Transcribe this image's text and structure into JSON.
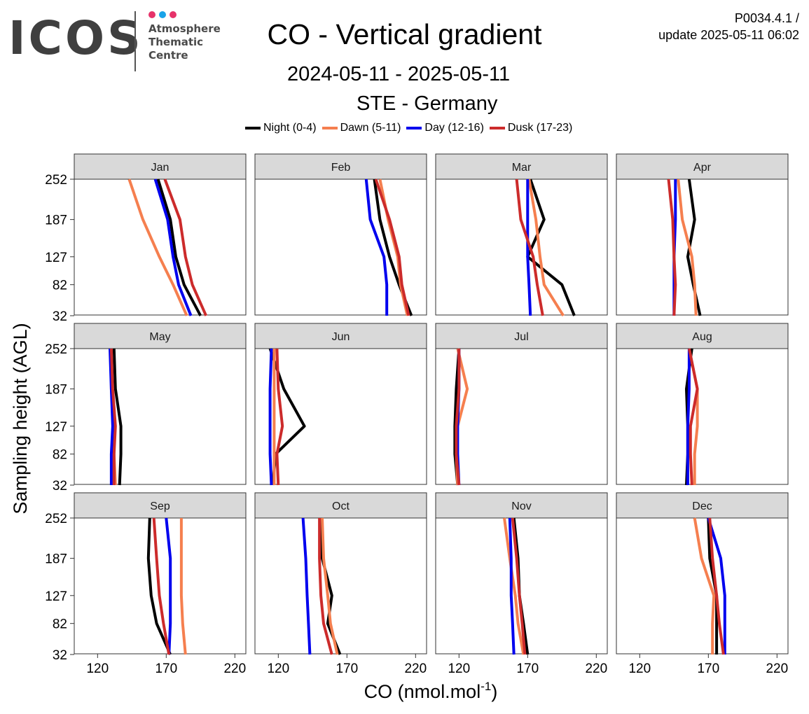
{
  "logo": {
    "wordmark": "ICOS",
    "lines": [
      "Atmosphere",
      "Thematic",
      "Centre"
    ],
    "dot_colors": [
      "#e6336a",
      "#1aa3e8",
      "#e6336a"
    ]
  },
  "header": {
    "title": "CO - Vertical gradient",
    "period": "2024-05-11 - 2025-05-11",
    "station": "STE - Germany",
    "product_id": "P0034.4.1 /",
    "update": "update  2025-05-11 06:02"
  },
  "chart_data": {
    "type": "line",
    "title": "CO - Vertical gradient",
    "xlabel": "CO (nmol.mol",
    "xlabel_superscript": "-1",
    "xlabel_suffix": ")",
    "ylabel": "Sampling height (AGL)",
    "xlim": [
      103,
      228
    ],
    "x_ticks": [
      120,
      170,
      220
    ],
    "y_ticks": [
      32,
      82,
      127,
      187,
      252
    ],
    "heights": [
      32,
      82,
      127,
      187,
      252
    ],
    "legend_position": "top",
    "grid": false,
    "series": [
      {
        "name": "Night (0-4)",
        "color": "#000000"
      },
      {
        "name": "Dawn (5-11)",
        "color": "#f57f4f"
      },
      {
        "name": "Day (12-16)",
        "color": "#0000ee"
      },
      {
        "name": "Dusk (17-23)",
        "color": "#cc2b2b"
      }
    ],
    "panels": [
      {
        "month": "Jan",
        "values": [
          [
            195,
            183,
            177,
            173,
            164
          ],
          [
            185,
            175,
            165,
            153,
            143
          ],
          [
            188,
            179,
            175,
            171,
            162
          ],
          [
            199,
            189,
            184,
            180,
            169
          ]
        ]
      },
      {
        "month": "Feb",
        "values": [
          [
            217,
            208,
            201,
            194,
            190
          ],
          [
            214,
            209,
            207,
            200,
            194
          ],
          [
            199,
            199,
            197,
            187,
            184
          ],
          [
            215,
            210,
            208,
            201,
            191
          ]
        ]
      },
      {
        "month": "Mar",
        "values": [
          [
            204,
            195,
            170,
            182,
            172
          ],
          [
            196,
            182,
            179,
            176,
            171
          ],
          [
            172,
            171,
            170,
            170,
            170
          ],
          [
            181,
            177,
            174,
            165,
            162
          ]
        ]
      },
      {
        "month": "Apr",
        "values": [
          [
            164,
            159,
            155,
            160,
            156
          ],
          [
            161,
            160,
            158,
            151,
            148
          ],
          [
            145,
            145,
            145,
            146,
            146
          ],
          [
            145,
            146,
            145,
            144,
            141
          ]
        ]
      },
      {
        "month": "May",
        "values": [
          [
            136,
            137,
            137,
            133,
            132
          ],
          [
            133,
            132,
            132,
            130,
            130
          ],
          [
            130,
            130,
            131,
            130,
            129
          ],
          [
            132,
            132,
            133,
            131,
            130
          ]
        ]
      },
      {
        "month": "Jun",
        "values": [
          [
            116,
            118,
            139,
            124,
            114
          ],
          [
            117,
            117,
            117,
            117,
            117
          ],
          [
            115,
            114,
            114,
            114,
            115
          ],
          [
            120,
            119,
            123,
            120,
            119
          ]
        ]
      },
      {
        "month": "Jul",
        "values": [
          [
            119,
            117,
            117,
            118,
            120
          ],
          [
            119,
            118,
            119,
            126,
            119
          ],
          [
            120,
            119,
            119,
            120,
            120
          ],
          [
            120,
            118,
            118,
            120,
            120
          ]
        ]
      },
      {
        "month": "Aug",
        "values": [
          [
            154,
            155,
            155,
            154,
            158
          ],
          [
            160,
            160,
            162,
            162,
            156
          ],
          [
            155,
            155,
            155,
            156,
            156
          ],
          [
            158,
            157,
            157,
            162,
            156
          ]
        ]
      },
      {
        "month": "Sep",
        "values": [
          [
            173,
            163,
            159,
            157,
            158
          ],
          [
            184,
            182,
            181,
            181,
            181
          ],
          [
            172,
            173,
            173,
            173,
            170
          ],
          [
            172,
            168,
            165,
            163,
            161
          ]
        ]
      },
      {
        "month": "Oct",
        "values": [
          [
            165,
            156,
            159,
            152,
            151
          ],
          [
            163,
            158,
            156,
            153,
            152
          ],
          [
            143,
            142,
            141,
            140,
            138
          ],
          [
            159,
            153,
            151,
            150,
            150
          ]
        ]
      },
      {
        "month": "Nov",
        "values": [
          [
            170,
            167,
            164,
            163,
            160
          ],
          [
            167,
            163,
            161,
            157,
            153
          ],
          [
            160,
            159,
            158,
            158,
            157
          ],
          [
            168,
            166,
            164,
            162,
            159
          ]
        ]
      },
      {
        "month": "Dec",
        "values": [
          [
            176,
            176,
            176,
            171,
            170
          ],
          [
            173,
            173,
            174,
            165,
            160
          ],
          [
            182,
            182,
            182,
            179,
            170
          ],
          [
            181,
            178,
            176,
            173,
            171
          ]
        ]
      }
    ]
  }
}
